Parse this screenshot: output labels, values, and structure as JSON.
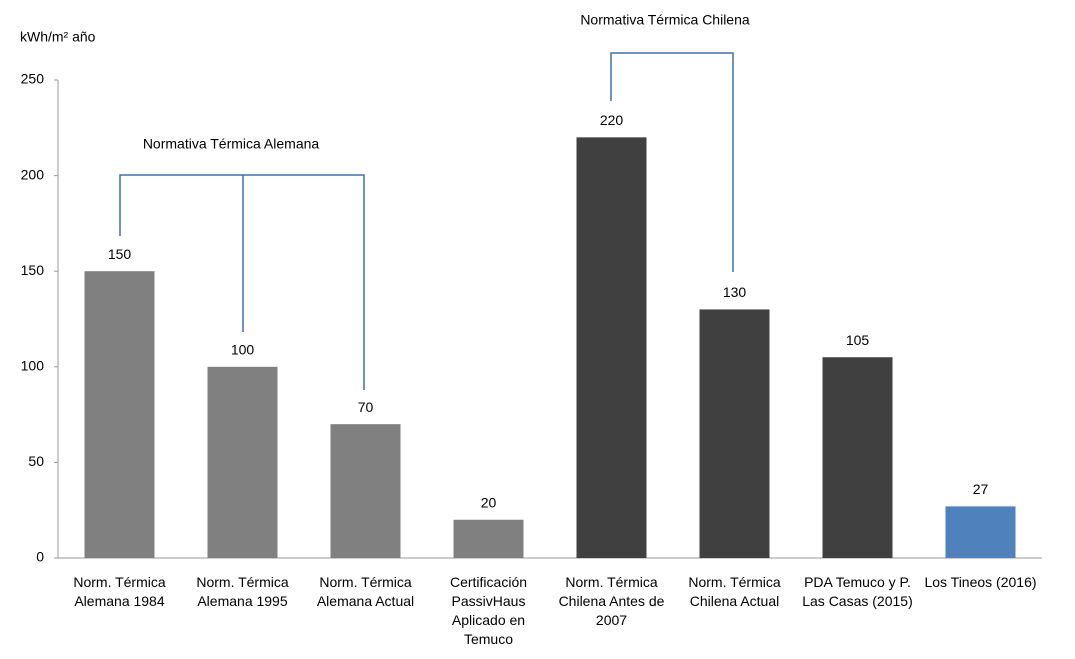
{
  "chart_data": {
    "type": "bar",
    "y_label": "kWh/m² año",
    "annotations": [
      "Normativa Térmica Alemana",
      "Normativa Térmica Chilena"
    ],
    "categories": [
      "Norm. Térmica Alemana 1984",
      "Norm. Térmica Alemana 1995",
      "Norm. Térmica Alemana Actual",
      "Certificación PassivHaus Aplicado en Temuco",
      "Norm. Térmica Chilena Antes de 2007",
      "Norm. Térmica Chilena Actual",
      "PDA Temuco y P. Las Casas (2015)",
      "Los Tineos (2016)"
    ],
    "values": [
      150,
      100,
      70,
      20,
      220,
      130,
      105,
      27
    ],
    "colors": [
      "#808080",
      "#808080",
      "#808080",
      "#808080",
      "#404040",
      "#404040",
      "#404040",
      "#4f81bd"
    ],
    "ylim": [
      0,
      250
    ],
    "yticks": [
      0,
      50,
      100,
      150,
      200,
      250
    ],
    "grid": false
  }
}
